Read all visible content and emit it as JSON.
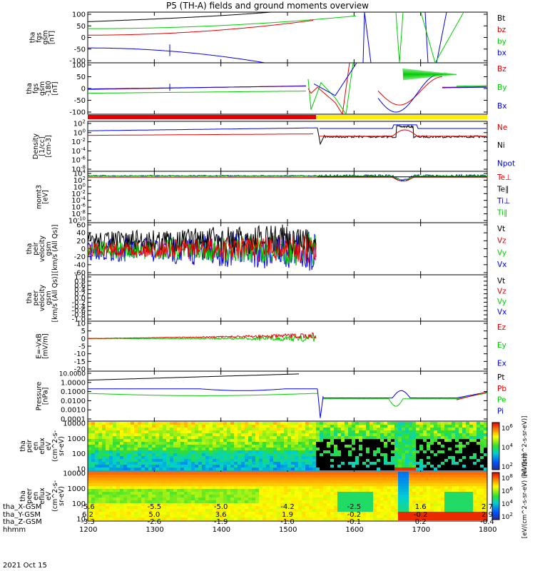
{
  "title": "P5 (TH-A) fields and ground moments overview",
  "date": "2021 Oct 15",
  "colors": {
    "black": "#000000",
    "red": "#e60000",
    "green": "#00cc00",
    "blue": "#0000ee",
    "yellow": "#ffee00"
  },
  "chart_data": {
    "type": "line",
    "panels": [
      {
        "id": "fgs",
        "ylabel": [
          "tha",
          "fgs",
          "gsm",
          "[nT]"
        ],
        "yticks": [
          "100",
          "50",
          "0",
          "-50",
          "-100"
        ],
        "legend": [
          {
            "t": "Bt",
            "c": "black"
          },
          {
            "t": "bz",
            "c": "red"
          },
          {
            "t": "by",
            "c": "green"
          },
          {
            "t": "bx",
            "c": "blue"
          }
        ]
      },
      {
        "id": "fgs_gse",
        "ylabel": [
          "tha",
          "fgs",
          "gsm",
          "-180",
          "[nT]"
        ],
        "yticks": [
          "100",
          "50",
          "0",
          "-50",
          "-100"
        ],
        "legend": [
          {
            "t": "Bz",
            "c": "red"
          },
          {
            "t": "By",
            "c": "green"
          },
          {
            "t": "Bx",
            "c": "blue"
          }
        ]
      },
      {
        "id": "density",
        "ylabel": [
          "Density",
          "[1/cc]",
          "[cm-3]"
        ],
        "yticks": [
          "10^2",
          "10^0",
          "10^-2",
          "10^-4",
          "10^-6",
          "10^-8"
        ],
        "legend": [
          {
            "t": "Ne",
            "c": "red"
          },
          {
            "t": "Ni",
            "c": "black"
          },
          {
            "t": "Npot",
            "c": "blue"
          }
        ]
      },
      {
        "id": "temp",
        "ylabel": [
          "momt3",
          "[eV]"
        ],
        "yticks": [
          "10^4",
          "10^2",
          "10^0",
          "10^-2",
          "10^-4",
          "10^-6",
          "10^-8",
          "10^-10"
        ],
        "legend": [
          {
            "t": "Te⊥",
            "c": "red"
          },
          {
            "t": "Te∥",
            "c": "black"
          },
          {
            "t": "Ti⊥",
            "c": "blue"
          },
          {
            "t": "Ti∥",
            "c": "green"
          }
        ]
      },
      {
        "id": "peir_vel",
        "ylabel": [
          "tha",
          "peir",
          "velocity",
          "gsm",
          "[km/s (All Qs)]"
        ],
        "yticks": [
          "60",
          "40",
          "20",
          "0",
          "-20",
          "-40",
          "-60"
        ],
        "legend": [
          {
            "t": "Vt",
            "c": "black"
          },
          {
            "t": "Vz",
            "c": "red"
          },
          {
            "t": "Vy",
            "c": "green"
          },
          {
            "t": "Vx",
            "c": "blue"
          }
        ]
      },
      {
        "id": "peer_vel",
        "ylabel": [
          "tha",
          "peer",
          "velocity",
          "gsm",
          "[km/s (All Qs)]"
        ],
        "yticks": [
          "1.0",
          "0.8",
          "0.6",
          "0.4",
          "0.2",
          "0.0",
          "-0.2",
          "-0.4",
          "-0.6",
          "-0.8",
          "-1.0"
        ],
        "legend": [
          {
            "t": "Vt",
            "c": "black"
          },
          {
            "t": "Vz",
            "c": "red"
          },
          {
            "t": "Vy",
            "c": "green"
          },
          {
            "t": "Vx",
            "c": "blue"
          }
        ]
      },
      {
        "id": "efield",
        "ylabel": [
          "E=-VxB",
          "[mV/m]"
        ],
        "yticks": [
          "10",
          "5",
          "0",
          "-5",
          "-10",
          "-15",
          "-20"
        ],
        "legend": [
          {
            "t": "Ez",
            "c": "red"
          },
          {
            "t": "Ey",
            "c": "green"
          },
          {
            "t": "Ex",
            "c": "blue"
          }
        ]
      },
      {
        "id": "pressure",
        "ylabel": [
          "Pressure",
          "[nPa]"
        ],
        "yticks": [
          "10.0000",
          "1.0000",
          "0.1000",
          "0.0100",
          "0.0010",
          "0.0001"
        ],
        "legend": [
          {
            "t": "Pt",
            "c": "black"
          },
          {
            "t": "Pb",
            "c": "red"
          },
          {
            "t": "Pe",
            "c": "green"
          },
          {
            "t": "Pi",
            "c": "blue"
          }
        ]
      },
      {
        "id": "peir_eflux",
        "ylabel": [
          "tha",
          "peir",
          "en",
          "eflux",
          "eV",
          "(cm^2-s-",
          "sr-eV)"
        ],
        "yticks": [
          "10000",
          "1000",
          "100",
          "10"
        ],
        "colorbar": {
          "label": "[eV/(cm^2-s-sr-eV)]",
          "ticks": [
            "10^6",
            "10^4",
            "10^2"
          ]
        }
      },
      {
        "id": "peer_eflux",
        "ylabel": [
          "tha",
          "peer",
          "en",
          "eflux",
          "eV",
          "(cm^2-s-",
          "sr-eV)"
        ],
        "yticks": [
          "10000",
          "1000",
          "100",
          "10"
        ],
        "colorbar": {
          "label": "[eV/(cm^2-s-sr-eV) (All Qs)]",
          "ticks": [
            "10^8",
            "10^6",
            "10^4",
            "10^2"
          ]
        }
      }
    ],
    "x_axis": {
      "rows": [
        {
          "label": "tha_X-GSM",
          "values": [
            "-5.6",
            "-5.5",
            "-5.0",
            "-4.2",
            "-2.5",
            "1.6",
            "2.7"
          ]
        },
        {
          "label": "tha_Y-GSM",
          "values": [
            "6.2",
            "5.0",
            "3.6",
            "1.9",
            "-0.2",
            "-0.2",
            "2.9"
          ]
        },
        {
          "label": "tha_Z-GSM",
          "values": [
            "-3.3",
            "-2.6",
            "-1.9",
            "-1.0",
            "-0.1",
            "0.2",
            "-0.4"
          ]
        },
        {
          "label": "hhmm",
          "values": [
            "1200",
            "1300",
            "1400",
            "1500",
            "1600",
            "1700",
            "1800"
          ]
        }
      ]
    }
  }
}
